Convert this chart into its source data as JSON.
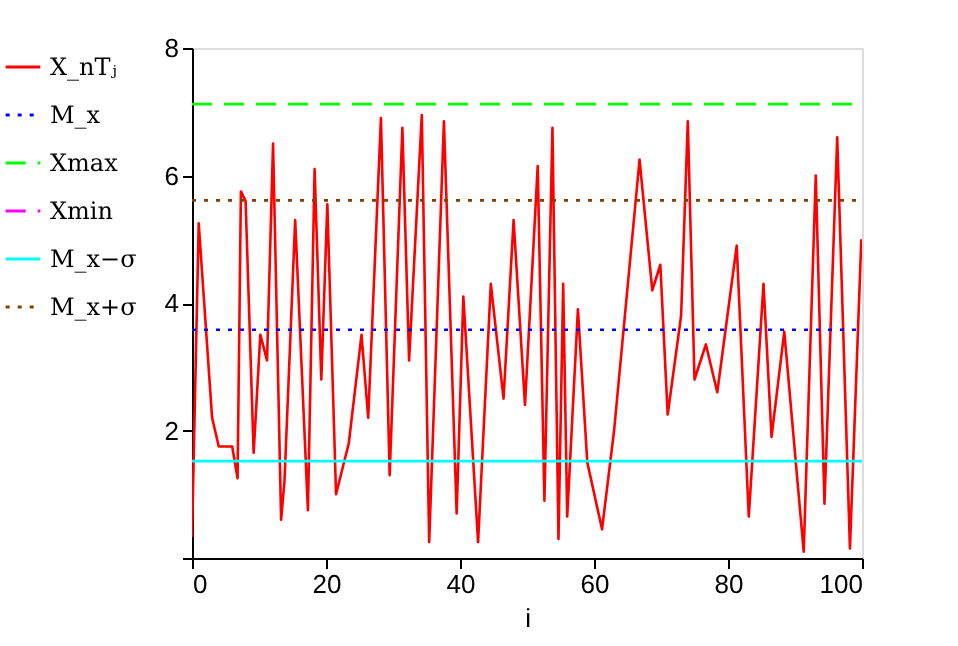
{
  "chart_data": {
    "type": "line",
    "xlabel": "i",
    "xlim": [
      0,
      100
    ],
    "ylim": [
      0,
      8
    ],
    "xticks": [
      0,
      20,
      40,
      60,
      80,
      100
    ],
    "yticks": [
      {
        "value": 0,
        "label": null
      },
      2,
      4,
      6,
      8
    ],
    "grid": false,
    "legend": "left",
    "marker": "none",
    "series": [
      {
        "name": "X_nTⱼ",
        "color": "#ff0000",
        "line_style": "solid",
        "x": [
          0,
          1,
          3,
          4,
          6,
          6.8,
          7.3,
          8,
          9.2,
          10.2,
          11.2,
          12.1,
          13.3,
          13.8,
          15.4,
          17.3,
          18.3,
          19.3,
          20.2,
          21.5,
          23.4,
          25.3,
          26.3,
          28.2,
          29.5,
          31.4,
          32.4,
          34.3,
          35.4,
          37.6,
          39.5,
          40.5,
          42.7,
          44.6,
          46.5,
          48,
          49.7,
          51.6,
          52.6,
          53.8,
          54.7,
          55.4,
          56,
          57.6,
          59,
          61.2,
          63,
          66.8,
          68.7,
          69.9,
          71,
          73,
          74,
          75,
          76.7,
          78.4,
          81.3,
          83.1,
          85.3,
          86.5,
          88.4,
          91.3,
          93.1,
          94.4,
          96.3,
          98.2,
          99.9
        ],
        "values": [
          0.33,
          5.25,
          2.2,
          1.75,
          1.75,
          1.25,
          5.75,
          5.6,
          1.65,
          3.5,
          3.1,
          6.5,
          0.6,
          1.2,
          5.3,
          0.75,
          6.1,
          2.8,
          5.55,
          1.0,
          1.8,
          3.5,
          2.2,
          6.9,
          1.3,
          6.75,
          3.1,
          6.95,
          0.25,
          6.85,
          0.7,
          4.1,
          0.25,
          4.3,
          2.5,
          5.3,
          2.4,
          6.15,
          0.9,
          6.75,
          0.3,
          4.3,
          0.65,
          3.9,
          1.5,
          0.45,
          2.0,
          6.25,
          4.2,
          4.6,
          2.25,
          3.8,
          6.85,
          2.8,
          3.35,
          2.6,
          4.9,
          0.65,
          4.3,
          1.9,
          3.55,
          0.1,
          6.0,
          0.85,
          6.6,
          0.15,
          5.0
        ]
      },
      {
        "name": "M_x",
        "color": "#0000ff",
        "line_style": "dotted",
        "x": [
          0,
          100
        ],
        "values": [
          3.58,
          3.58
        ]
      },
      {
        "name": "Xmax",
        "color": "#00ff00",
        "line_style": "dashed",
        "x": [
          0,
          100
        ],
        "values": [
          7.12,
          7.12
        ]
      },
      {
        "name": "Xmin",
        "color": "#ff00ff",
        "line_style": "dashed"
      },
      {
        "name": "M_x−σ",
        "color": "#00ffff",
        "line_style": "solid",
        "x": [
          0,
          100
        ],
        "values": [
          1.52,
          1.52
        ]
      },
      {
        "name": "M_x+σ",
        "color": "#804000",
        "line_style": "dotted",
        "x": [
          0,
          100
        ],
        "values": [
          5.61,
          5.61
        ]
      }
    ]
  }
}
